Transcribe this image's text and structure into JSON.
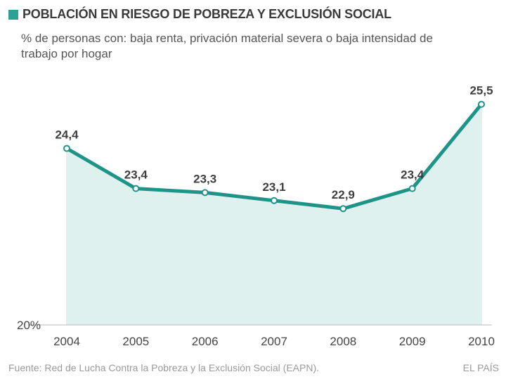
{
  "header": {
    "title": "POBLACIÓN EN RIESGO DE POBREZA Y EXCLUSIÓN SOCIAL",
    "subtitle": "% de personas con: baja renta, privación material severa o baja intensidad de trabajo por hogar"
  },
  "chart_data": {
    "type": "area",
    "title": "POBLACIÓN EN RIESGO DE POBREZA Y EXCLUSIÓN SOCIAL",
    "subtitle": "% de personas con: baja renta, privación material severa o baja intensidad de trabajo por hogar",
    "categories": [
      "2004",
      "2005",
      "2006",
      "2007",
      "2008",
      "2009",
      "2010"
    ],
    "values": [
      24.4,
      23.4,
      23.3,
      23.1,
      22.9,
      23.4,
      25.5
    ],
    "value_labels": [
      "24,4",
      "23,4",
      "23,3",
      "23,1",
      "22,9",
      "23,4",
      "25,5"
    ],
    "y_baseline_label": "20%",
    "ylim": [
      20,
      26
    ],
    "xlabel": "",
    "ylabel": "",
    "grid": "vertical"
  },
  "colors": {
    "line": "#1e9488",
    "fill": "#dff1ef",
    "grid": "#d9d9d9",
    "label": "#3f3f3f",
    "tick": "#444444"
  },
  "footer": {
    "source": "Fuente: Red de Lucha Contra la Pobreza y la Exclusión Social (EAPN).",
    "brand": "EL PAÍS"
  }
}
